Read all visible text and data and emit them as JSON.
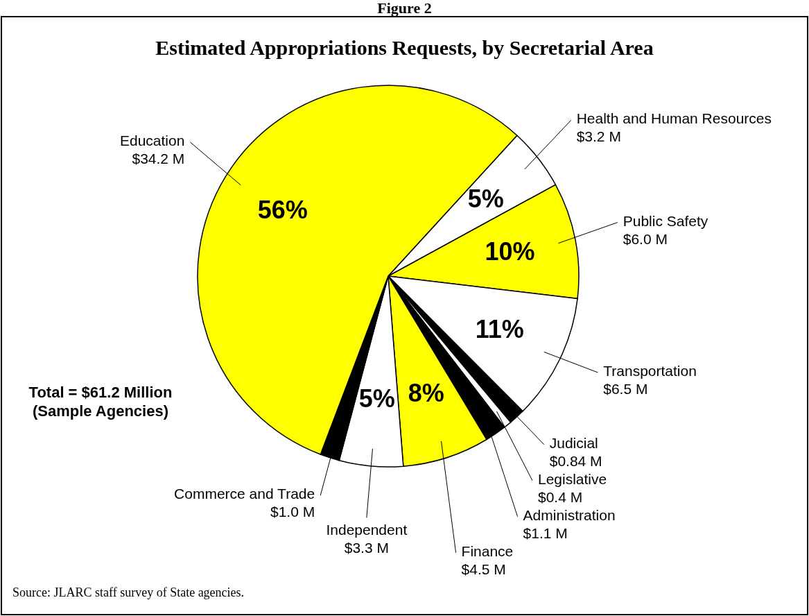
{
  "chart_data": {
    "type": "pie",
    "title": "Estimated Appropriations Requests, by Secretarial Area",
    "categories": [
      "Health and Human Resources",
      "Public Safety",
      "Transportation",
      "Judicial",
      "Legislative",
      "Administration",
      "Finance",
      "Independent",
      "Commerce and Trade",
      "Education"
    ],
    "values": [
      3.2,
      6.0,
      6.5,
      0.84,
      0.4,
      1.1,
      4.5,
      3.3,
      1.0,
      34.2
    ],
    "colors": [
      "#ffffff",
      "#ffff00",
      "#ffffff",
      "#000000",
      "#ffffff",
      "#000000",
      "#ffff00",
      "#ffffff",
      "#000000",
      "#ffff00"
    ],
    "value_labels": [
      "$3.2 M",
      "$6.0 M",
      "$6.5 M",
      "$0.84 M",
      "$0.4 M",
      "$1.1 M",
      "$4.5 M",
      "$3.3 M",
      "$1.0 M",
      "$34.2 M"
    ],
    "annotations": [
      "Figure 2",
      "Total = $61.2 Million\n(Sample Agencies)",
      "Source:  JLARC staff survey of State agencies.",
      {
        "text": "5%",
        "x": "Health and Human Resources"
      },
      {
        "text": "10%",
        "x": "Public Safety"
      },
      {
        "text": "11%",
        "x": "Transportation"
      },
      {
        "text": "8%",
        "x": "Finance"
      },
      {
        "text": "5%",
        "x": "Independent"
      },
      {
        "text": "56%",
        "x": "Education"
      }
    ]
  }
}
